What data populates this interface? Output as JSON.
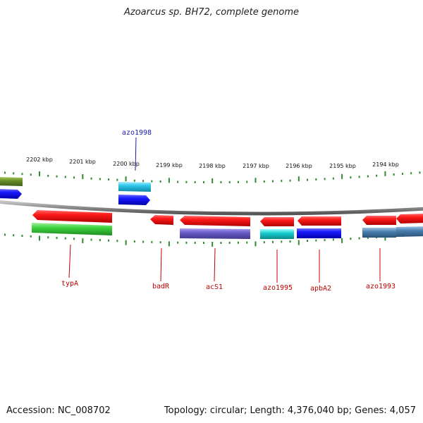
{
  "title": "Azoarcus sp. BH72, complete genome",
  "footer": {
    "accession": "Accession: NC_008702",
    "topology": "Topology: circular; Length: 4,376,040 bp; Genes: 4,057"
  },
  "scale_labels": [
    "2202 kbp",
    "2201 kbp",
    "2200 kbp",
    "2199 kbp",
    "2198 kbp",
    "2197 kbp",
    "2196 kbp",
    "2195 kbp",
    "2194 kbp"
  ],
  "gene_labels": [
    {
      "name": "azo1998",
      "strand": "forward",
      "color": "#1a1aa6"
    },
    {
      "name": "typA",
      "strand": "reverse",
      "color": "#c00000"
    },
    {
      "name": "badR",
      "strand": "reverse",
      "color": "#c00000"
    },
    {
      "name": "acS1",
      "strand": "reverse",
      "color": "#c00000"
    },
    {
      "name": "azo1995",
      "strand": "reverse",
      "color": "#c00000"
    },
    {
      "name": "apbA2",
      "strand": "reverse",
      "color": "#c00000"
    },
    {
      "name": "azo1993",
      "strand": "reverse",
      "color": "#c00000"
    }
  ],
  "colors": {
    "backbone": "#8a8a8a",
    "ticks": "#2e8b2e",
    "gene_red": "#e01010",
    "gene_blue": "#1414e0",
    "gene_cyan": "#22c0d8",
    "gene_green": "#3cc83c",
    "gene_olive": "#6a8f24",
    "gene_purple": "#6a5ac8",
    "gene_steel": "#4a7fb0",
    "gene_teal": "#18c8c8"
  }
}
